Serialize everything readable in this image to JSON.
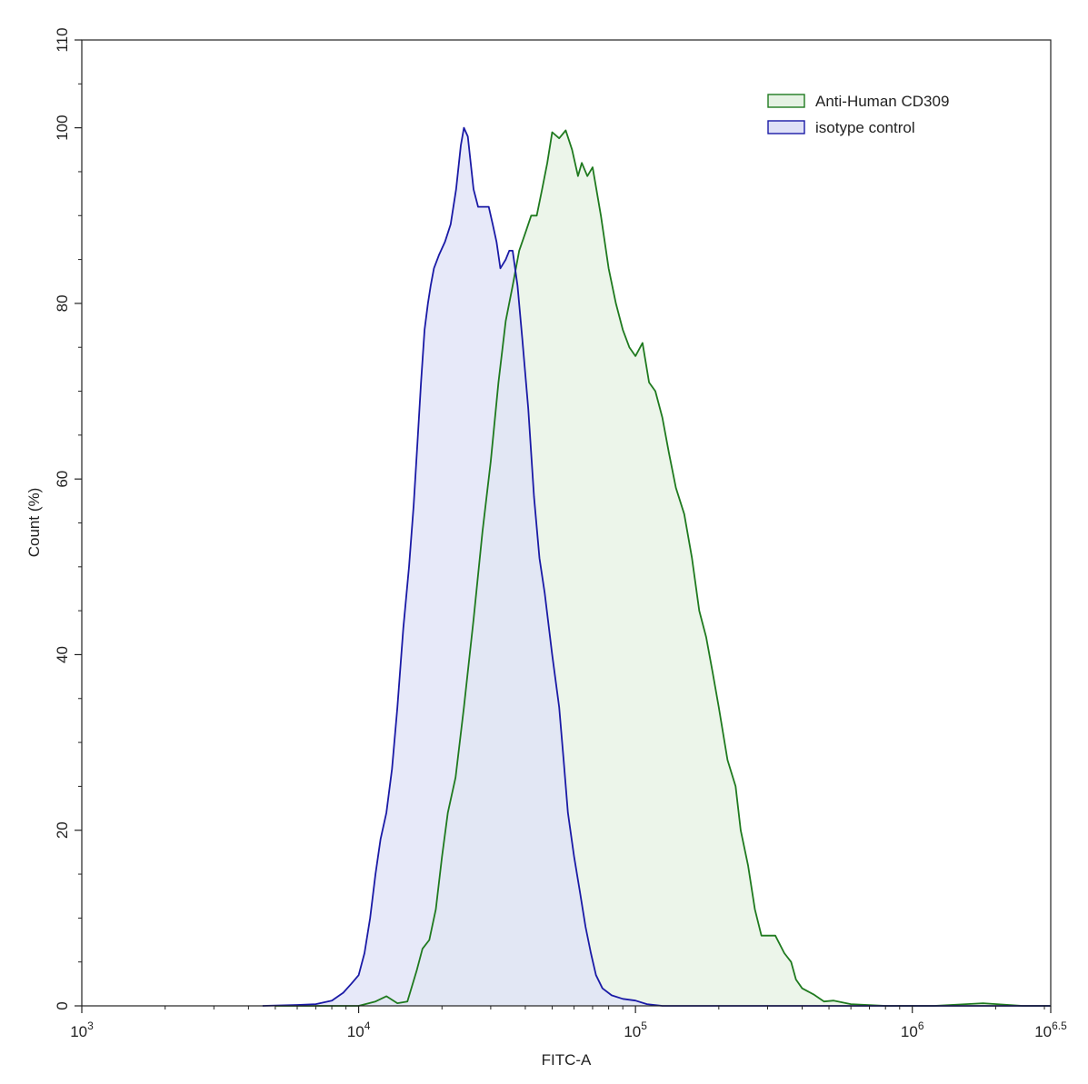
{
  "chart_data": {
    "type": "area",
    "xlabel": "FITC-A",
    "ylabel": "Count  (%)",
    "x_scale": "log10",
    "xlim": [
      1000,
      3162278
    ],
    "ylim": [
      0,
      110
    ],
    "x_ticks": [
      {
        "value": 1000,
        "base": "10",
        "exp": "3"
      },
      {
        "value": 10000,
        "base": "10",
        "exp": "4"
      },
      {
        "value": 100000,
        "base": "10",
        "exp": "5"
      },
      {
        "value": 1000000,
        "base": "10",
        "exp": "6"
      },
      {
        "value": 3162278,
        "base": "10",
        "exp": "6.5"
      }
    ],
    "y_ticks": [
      "0",
      "20",
      "40",
      "60",
      "80",
      "100",
      "110"
    ],
    "legend_position": "top-right",
    "grid": false,
    "series": [
      {
        "name": "Anti-Human CD309",
        "stroke": "#1f7a1f",
        "fill": "#e5f2e3",
        "points": [
          [
            5000,
            0
          ],
          [
            8000,
            0
          ],
          [
            10000,
            0
          ],
          [
            11500,
            0.5
          ],
          [
            12600,
            1.1
          ],
          [
            13800,
            0.3
          ],
          [
            15000,
            0.5
          ],
          [
            16200,
            4
          ],
          [
            17000,
            6.5
          ],
          [
            18000,
            7.5
          ],
          [
            19000,
            11
          ],
          [
            20000,
            17
          ],
          [
            21000,
            22
          ],
          [
            22400,
            26
          ],
          [
            24000,
            34
          ],
          [
            26000,
            44
          ],
          [
            28000,
            54
          ],
          [
            30000,
            62
          ],
          [
            32000,
            71
          ],
          [
            34000,
            78
          ],
          [
            36000,
            82
          ],
          [
            38000,
            86
          ],
          [
            40000,
            88
          ],
          [
            42000,
            90
          ],
          [
            44000,
            90
          ],
          [
            46000,
            93
          ],
          [
            48000,
            96
          ],
          [
            50000,
            99.5
          ],
          [
            53000,
            98.8
          ],
          [
            56000,
            99.7
          ],
          [
            59000,
            97.5
          ],
          [
            62000,
            94.5
          ],
          [
            64000,
            96
          ],
          [
            67000,
            94.5
          ],
          [
            70000,
            95.5
          ],
          [
            75000,
            90
          ],
          [
            80000,
            84
          ],
          [
            85000,
            80
          ],
          [
            90000,
            77
          ],
          [
            95000,
            75
          ],
          [
            100000,
            74
          ],
          [
            106000,
            75.5
          ],
          [
            112000,
            71
          ],
          [
            118000,
            70
          ],
          [
            125000,
            67
          ],
          [
            132000,
            63
          ],
          [
            140000,
            59
          ],
          [
            150000,
            56
          ],
          [
            160000,
            51
          ],
          [
            170000,
            45
          ],
          [
            180000,
            42
          ],
          [
            190000,
            38
          ],
          [
            200000,
            34
          ],
          [
            215000,
            28
          ],
          [
            230000,
            25
          ],
          [
            240000,
            20
          ],
          [
            255000,
            16
          ],
          [
            270000,
            11
          ],
          [
            285000,
            8
          ],
          [
            300000,
            8
          ],
          [
            320000,
            8
          ],
          [
            345000,
            6
          ],
          [
            365000,
            5
          ],
          [
            380000,
            3
          ],
          [
            400000,
            2
          ],
          [
            440000,
            1.3
          ],
          [
            480000,
            0.5
          ],
          [
            520000,
            0.6
          ],
          [
            600000,
            0.2
          ],
          [
            800000,
            0
          ],
          [
            1200000,
            0
          ],
          [
            1800000,
            0.3
          ],
          [
            2500000,
            0
          ],
          [
            3162278,
            0
          ]
        ]
      },
      {
        "name": "isotype control",
        "stroke": "#1a1aa6",
        "fill": "#dfe1f7",
        "points": [
          [
            4500,
            0
          ],
          [
            6000,
            0.1
          ],
          [
            7000,
            0.2
          ],
          [
            8000,
            0.6
          ],
          [
            8800,
            1.5
          ],
          [
            9400,
            2.5
          ],
          [
            10000,
            3.5
          ],
          [
            10500,
            6
          ],
          [
            11000,
            10
          ],
          [
            11500,
            15
          ],
          [
            12000,
            19
          ],
          [
            12600,
            22
          ],
          [
            13200,
            27
          ],
          [
            13800,
            34
          ],
          [
            14500,
            43
          ],
          [
            15200,
            50
          ],
          [
            15800,
            57
          ],
          [
            16300,
            64
          ],
          [
            16800,
            71
          ],
          [
            17300,
            77
          ],
          [
            17800,
            80
          ],
          [
            18200,
            82
          ],
          [
            18700,
            84
          ],
          [
            19500,
            85.5
          ],
          [
            20500,
            87
          ],
          [
            21500,
            89
          ],
          [
            22500,
            93
          ],
          [
            23400,
            98
          ],
          [
            24000,
            100
          ],
          [
            24800,
            99
          ],
          [
            26000,
            93
          ],
          [
            27000,
            91
          ],
          [
            28000,
            91
          ],
          [
            29500,
            91
          ],
          [
            30500,
            89
          ],
          [
            31500,
            87
          ],
          [
            32500,
            84
          ],
          [
            34000,
            85
          ],
          [
            35000,
            86
          ],
          [
            36000,
            86
          ],
          [
            37500,
            82
          ],
          [
            39000,
            76
          ],
          [
            41000,
            68
          ],
          [
            43000,
            58
          ],
          [
            45000,
            51
          ],
          [
            47000,
            47
          ],
          [
            50000,
            40
          ],
          [
            53000,
            34
          ],
          [
            55000,
            28
          ],
          [
            57000,
            22
          ],
          [
            60000,
            17
          ],
          [
            63000,
            13
          ],
          [
            66000,
            9
          ],
          [
            69000,
            6
          ],
          [
            72000,
            3.5
          ],
          [
            76000,
            2
          ],
          [
            82000,
            1.2
          ],
          [
            90000,
            0.8
          ],
          [
            100000,
            0.6
          ],
          [
            110000,
            0.2
          ],
          [
            125000,
            0
          ],
          [
            200000,
            0
          ],
          [
            400000,
            0
          ],
          [
            1000000,
            0
          ],
          [
            3162278,
            0
          ]
        ]
      }
    ]
  }
}
